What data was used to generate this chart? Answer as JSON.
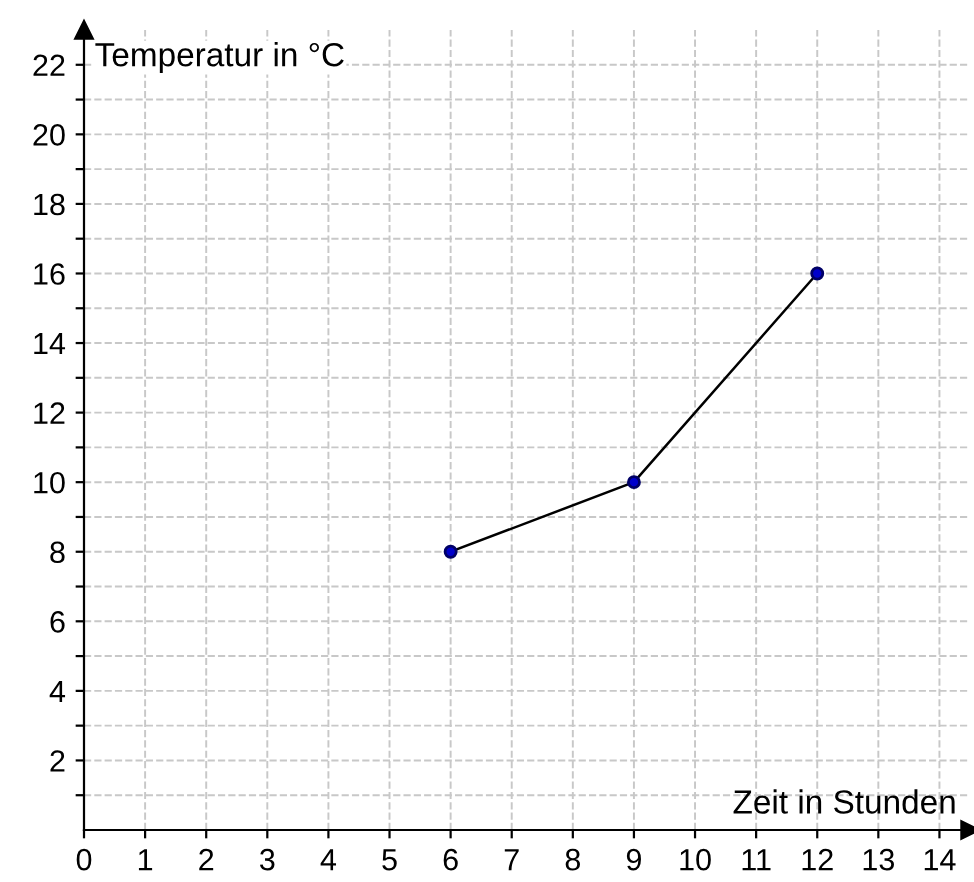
{
  "chart_data": {
    "type": "line",
    "xlabel": "Zeit in Stunden",
    "ylabel": "Temperatur in °C",
    "x": [
      6,
      9,
      12
    ],
    "series": [
      {
        "color": "#000000",
        "values": [
          8,
          10,
          16
        ]
      }
    ],
    "marker": "circle",
    "line_style": "solid",
    "grid": true,
    "xlim": [
      0,
      14.5
    ],
    "ylim": [
      0,
      23
    ],
    "xticks": [
      0,
      1,
      2,
      3,
      4,
      5,
      6,
      7,
      8,
      9,
      10,
      11,
      12,
      13,
      14
    ],
    "yticks": [
      {
        "value": 1,
        "label": null
      },
      2,
      {
        "value": 3,
        "label": null
      },
      4,
      {
        "value": 5,
        "label": null
      },
      6,
      {
        "value": 7,
        "label": null
      },
      8,
      {
        "value": 9,
        "label": null
      },
      10,
      {
        "value": 11,
        "label": null
      },
      12,
      {
        "value": 13,
        "label": null
      },
      14,
      {
        "value": 15,
        "label": null
      },
      16,
      {
        "value": 17,
        "label": null
      },
      18,
      {
        "value": 19,
        "label": null
      },
      20,
      {
        "value": 21,
        "label": null
      },
      22
    ]
  }
}
